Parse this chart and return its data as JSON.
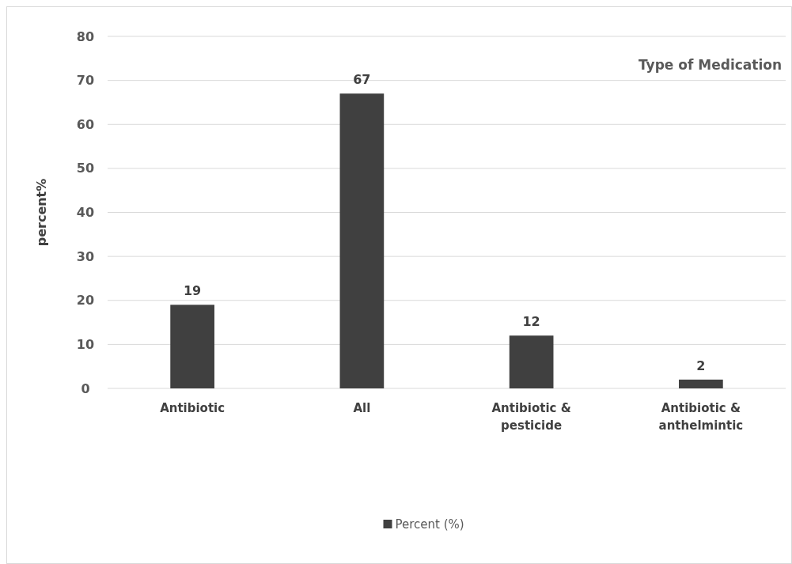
{
  "chart_data": {
    "type": "bar",
    "title": "Type of Medication",
    "ylabel": "percent%",
    "categories": [
      "Antibiotic",
      "All",
      "Antibiotic & pesticide",
      "Antibiotic & anthelmintic"
    ],
    "series": [
      {
        "name": "Percent (%)",
        "color": "#404040",
        "values": [
          19,
          67,
          12,
          2
        ]
      }
    ],
    "ylim": [
      0,
      80
    ],
    "yticks": [
      0,
      10,
      20,
      30,
      40,
      50,
      60,
      70,
      80
    ],
    "grid": "y",
    "legend": "bottom",
    "data_labels": true
  }
}
